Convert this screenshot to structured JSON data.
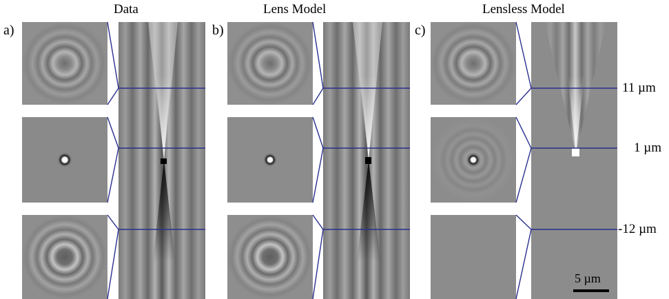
{
  "panels": [
    {
      "label": "a)",
      "title": "Data"
    },
    {
      "label": "b)",
      "title": "Lens Model"
    },
    {
      "label": "c)",
      "title": "Lensless Model"
    }
  ],
  "plane_labels": [
    "11 µm",
    "1 µm",
    "-12 µm"
  ],
  "scale_bar": {
    "label": "5 µm"
  },
  "colors": {
    "guide": "#2a2f8f",
    "background_gray": "#8c8c8c"
  }
}
